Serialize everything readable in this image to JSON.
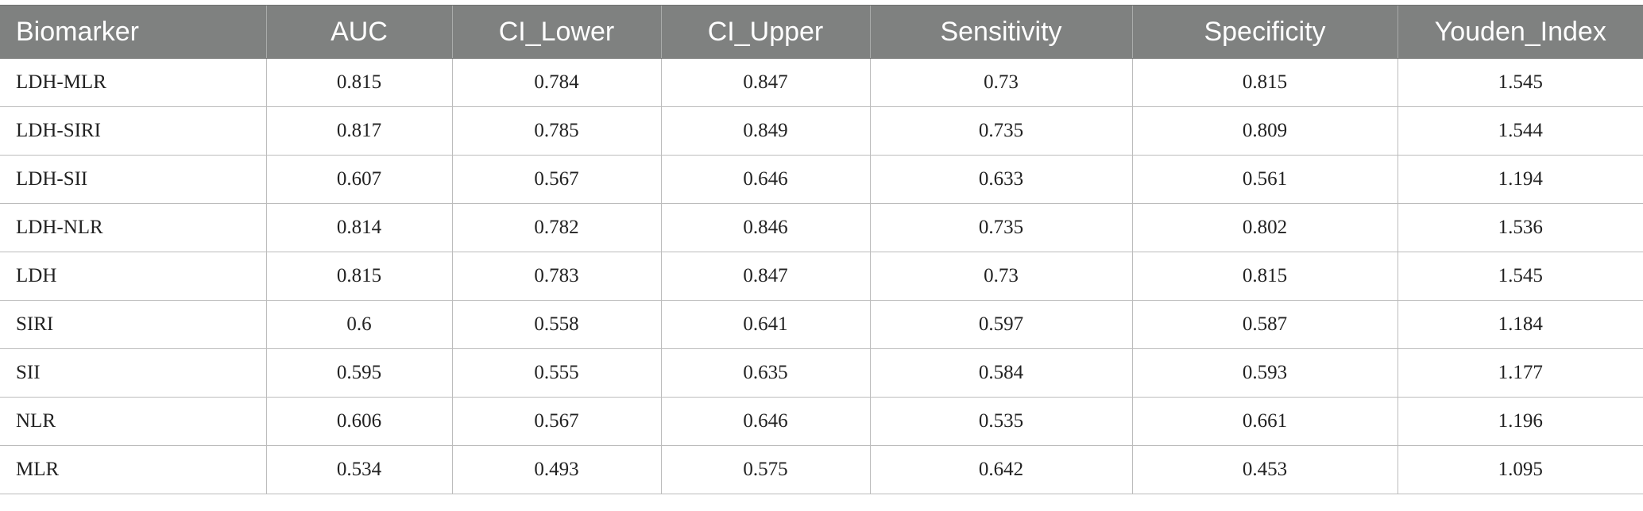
{
  "table": {
    "headers": [
      "Biomarker",
      "AUC",
      "CI_Lower",
      "CI_Upper",
      "Sensitivity",
      "Specificity",
      "Youden_Index"
    ],
    "rows": [
      [
        "LDH-MLR",
        "0.815",
        "0.784",
        "0.847",
        "0.73",
        "0.815",
        "1.545"
      ],
      [
        "LDH-SIRI",
        "0.817",
        "0.785",
        "0.849",
        "0.735",
        "0.809",
        "1.544"
      ],
      [
        "LDH-SII",
        "0.607",
        "0.567",
        "0.646",
        "0.633",
        "0.561",
        "1.194"
      ],
      [
        "LDH-NLR",
        "0.814",
        "0.782",
        "0.846",
        "0.735",
        "0.802",
        "1.536"
      ],
      [
        "LDH",
        "0.815",
        "0.783",
        "0.847",
        "0.73",
        "0.815",
        "1.545"
      ],
      [
        "SIRI",
        "0.6",
        "0.558",
        "0.641",
        "0.597",
        "0.587",
        "1.184"
      ],
      [
        "SII",
        "0.595",
        "0.555",
        "0.635",
        "0.584",
        "0.593",
        "1.177"
      ],
      [
        "NLR",
        "0.606",
        "0.567",
        "0.646",
        "0.535",
        "0.661",
        "1.196"
      ],
      [
        "MLR",
        "0.534",
        "0.493",
        "0.575",
        "0.642",
        "0.453",
        "1.095"
      ]
    ]
  }
}
